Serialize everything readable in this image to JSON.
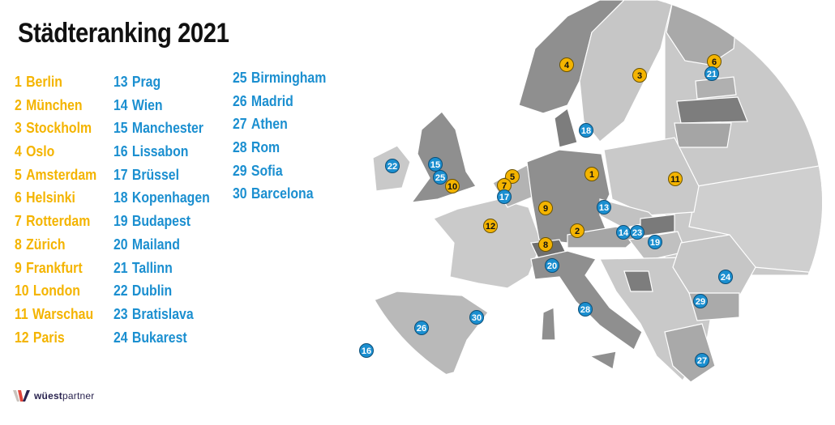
{
  "title": "Städteranking 2021",
  "colors": {
    "top12": "#f4b400",
    "rest": "#1b8fd0",
    "marker_text_top12": "#111111",
    "marker_text_rest": "#ffffff"
  },
  "ranking": [
    {
      "rank": "1",
      "city": "Berlin",
      "group": "top12"
    },
    {
      "rank": "2",
      "city": "München",
      "group": "top12"
    },
    {
      "rank": "3",
      "city": "Stockholm",
      "group": "top12"
    },
    {
      "rank": "4",
      "city": "Oslo",
      "group": "top12"
    },
    {
      "rank": "5",
      "city": "Amsterdam",
      "group": "top12"
    },
    {
      "rank": "6",
      "city": "Helsinki",
      "group": "top12"
    },
    {
      "rank": "7",
      "city": "Rotterdam",
      "group": "top12"
    },
    {
      "rank": "8",
      "city": "Zürich",
      "group": "top12"
    },
    {
      "rank": "9",
      "city": "Frankfurt",
      "group": "top12"
    },
    {
      "rank": "10",
      "city": "London",
      "group": "top12"
    },
    {
      "rank": "11",
      "city": "Warschau",
      "group": "top12"
    },
    {
      "rank": "12",
      "city": "Paris",
      "group": "top12"
    },
    {
      "rank": "13",
      "city": "Prag",
      "group": "rest"
    },
    {
      "rank": "14",
      "city": "Wien",
      "group": "rest"
    },
    {
      "rank": "15",
      "city": "Manchester",
      "group": "rest"
    },
    {
      "rank": "16",
      "city": "Lissabon",
      "group": "rest"
    },
    {
      "rank": "17",
      "city": "Brüssel",
      "group": "rest"
    },
    {
      "rank": "18",
      "city": "Kopenhagen",
      "group": "rest"
    },
    {
      "rank": "19",
      "city": "Budapest",
      "group": "rest"
    },
    {
      "rank": "20",
      "city": "Mailand",
      "group": "rest"
    },
    {
      "rank": "21",
      "city": "Tallinn",
      "group": "rest"
    },
    {
      "rank": "22",
      "city": "Dublin",
      "group": "rest"
    },
    {
      "rank": "23",
      "city": "Bratislava",
      "group": "rest"
    },
    {
      "rank": "24",
      "city": "Bukarest",
      "group": "rest"
    },
    {
      "rank": "25",
      "city": "Birmingham",
      "group": "rest"
    },
    {
      "rank": "26",
      "city": "Madrid",
      "group": "rest"
    },
    {
      "rank": "27",
      "city": "Athen",
      "group": "rest"
    },
    {
      "rank": "28",
      "city": "Rom",
      "group": "rest"
    },
    {
      "rank": "29",
      "city": "Sofia",
      "group": "rest"
    },
    {
      "rank": "30",
      "city": "Barcelona",
      "group": "rest"
    }
  ],
  "logo": {
    "brand": "wüestpartner",
    "icon": "wuestpartner-w-logo"
  }
}
